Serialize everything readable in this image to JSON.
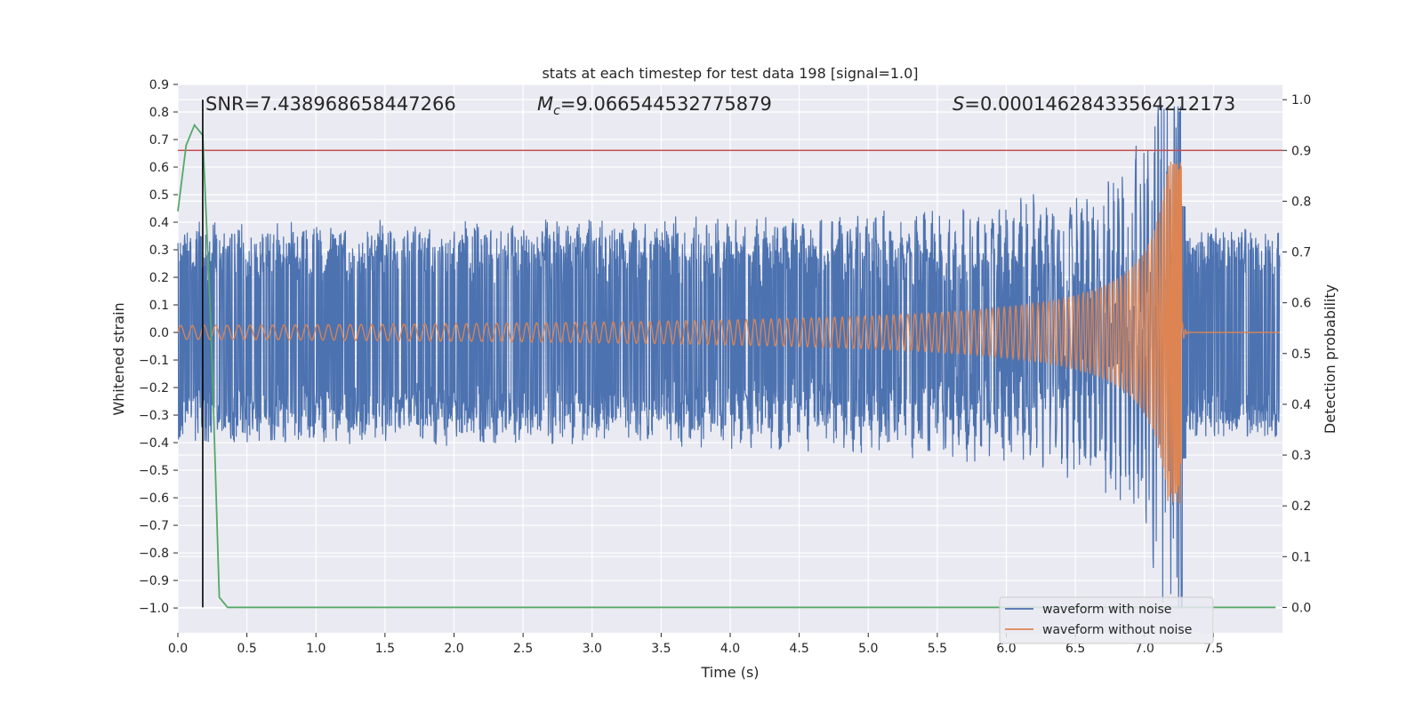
{
  "chart_data": {
    "type": "line",
    "title": "stats at each timestep for test data 198 [signal=1.0]",
    "xlabel": "Time (s)",
    "ylabel": "Whitened strain",
    "y2label": "Detection probability",
    "xlim": [
      0.0,
      8.0
    ],
    "ylim": [
      -1.09,
      0.9
    ],
    "y2lim": [
      -0.05,
      1.03
    ],
    "xticks": [
      "0.0",
      "0.5",
      "1.0",
      "1.5",
      "2.0",
      "2.5",
      "3.0",
      "3.5",
      "4.0",
      "4.5",
      "5.0",
      "5.5",
      "6.0",
      "6.5",
      "7.0",
      "7.5"
    ],
    "yticks": [
      "0.9",
      "0.8",
      "0.7",
      "0.6",
      "0.5",
      "0.4",
      "0.3",
      "0.2",
      "0.1",
      "0.0",
      "−0.1",
      "−0.2",
      "−0.3",
      "−0.4",
      "−0.5",
      "−0.6",
      "−0.7",
      "−0.8",
      "−0.9",
      "−1.0"
    ],
    "y2ticks": [
      "0.0",
      "0.1",
      "0.2",
      "0.3",
      "0.4",
      "0.5",
      "0.6",
      "0.7",
      "0.8",
      "0.9",
      "1.0"
    ],
    "grid": true,
    "legend_position": "bottom-right",
    "annotations": {
      "snr_label": "SNR=7.438968658447266",
      "mc_label_prefix": "M",
      "mc_label_sub": "c",
      "mc_label_value": "=9.066544532775879",
      "s_label_prefix": "S",
      "s_label_value": "=0.00014628433564212173"
    },
    "threshold": {
      "y2": 0.9,
      "color": "#c44e52"
    },
    "marker_line": {
      "x": 0.18,
      "color": "#000000"
    },
    "merger_time": 7.27,
    "series": [
      {
        "name": "waveform with noise",
        "color": "#4c72b0",
        "noise_band": [
          -0.38,
          0.38
        ],
        "merger_peak": 0.8,
        "merger_trough": -1.0
      },
      {
        "name": "waveform without noise",
        "color": "#dd8452",
        "amplitude_start": 0.025,
        "amplitude_at_merger": 0.62
      },
      {
        "name": "detection probability",
        "color": "#55a868",
        "x": [
          0.0,
          0.06,
          0.12,
          0.18,
          0.24,
          0.3,
          0.36,
          0.42,
          1.0,
          2.0,
          3.0,
          4.0,
          5.0,
          6.0,
          7.0,
          7.95
        ],
        "y": [
          0.78,
          0.91,
          0.95,
          0.93,
          0.55,
          0.02,
          0.0,
          0.0,
          0.0,
          0.0,
          0.0,
          0.0,
          0.0,
          0.0,
          0.0,
          0.0
        ]
      }
    ]
  }
}
